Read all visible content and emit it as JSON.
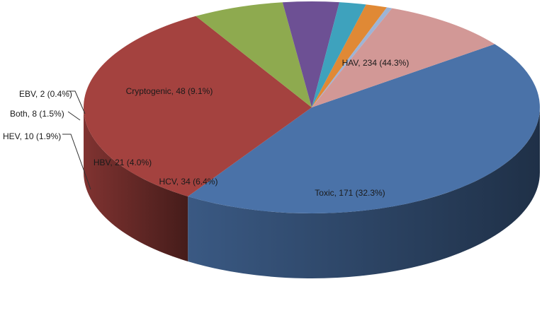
{
  "chart_data": {
    "type": "pie",
    "style": "3d",
    "slices": [
      {
        "name": "HAV",
        "value": 234,
        "percent": 44.3,
        "label": "HAV, 234 (44.3%)",
        "color": "#4a72a8"
      },
      {
        "name": "Toxic",
        "value": 171,
        "percent": 32.3,
        "label": "Toxic, 171  (32.3%)",
        "color": "#a4423f"
      },
      {
        "name": "HCV",
        "value": 34,
        "percent": 6.4,
        "label": "HCV, 34 (6.4%)",
        "color": "#8eaa4f"
      },
      {
        "name": "HBV",
        "value": 21,
        "percent": 4.0,
        "label": "HBV, 21 (4.0%)",
        "color": "#6d5094"
      },
      {
        "name": "HEV",
        "value": 10,
        "percent": 1.9,
        "label": "HEV, 10 (1.9%)",
        "color": "#3ea2bd"
      },
      {
        "name": "Both",
        "value": 8,
        "percent": 1.5,
        "label": "Both, 8 (1.5%)",
        "color": "#e08935"
      },
      {
        "name": "EBV",
        "value": 2,
        "percent": 0.4,
        "label": "EBV, 2 (0.4%)",
        "color": "#9db4d6"
      },
      {
        "name": "Cryptogenic",
        "value": 48,
        "percent": 9.1,
        "label": "Cryptogenic, 48 (9.1%)",
        "color": "#d29896"
      }
    ],
    "legend": "none"
  }
}
